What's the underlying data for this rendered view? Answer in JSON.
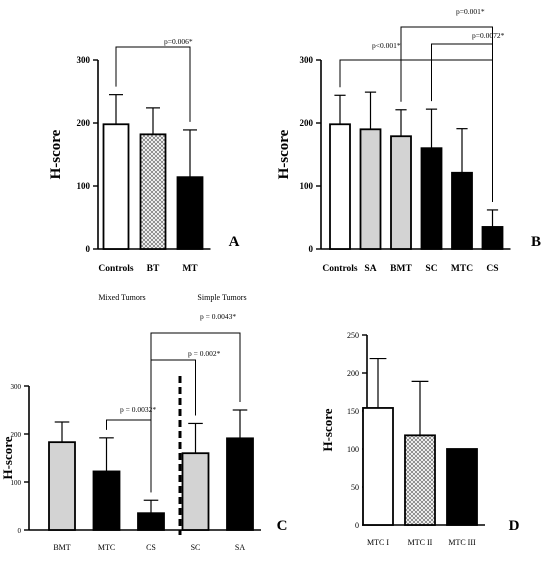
{
  "colors": {
    "white": "#ffffff",
    "gray": "#d3d3d3",
    "black": "#000000",
    "stroke": "#000000"
  },
  "chart_data": [
    {
      "id": "A",
      "panel_label": "A",
      "type": "bar",
      "ylabel": "H-score",
      "ylim": [
        0,
        300
      ],
      "yticks": [
        0,
        100,
        200,
        300
      ],
      "categories": [
        "Controls",
        "BT",
        "MT"
      ],
      "values": [
        198,
        182,
        114
      ],
      "errors": [
        47,
        42,
        75
      ],
      "fills": [
        "white",
        "hatch",
        "black"
      ],
      "annotations": [
        {
          "from": 0,
          "to": 2,
          "text": "p=0.006*"
        }
      ]
    },
    {
      "id": "B",
      "panel_label": "B",
      "type": "bar",
      "ylabel": "H-score",
      "ylim": [
        0,
        300
      ],
      "yticks": [
        0,
        100,
        200,
        300
      ],
      "categories": [
        "Controls",
        "SA",
        "BMT",
        "SC",
        "MTC",
        "CS"
      ],
      "values": [
        198,
        190,
        179,
        160,
        121,
        35
      ],
      "errors": [
        46,
        59,
        42,
        62,
        70,
        27
      ],
      "fills": [
        "white",
        "gray",
        "gray",
        "black",
        "black",
        "black"
      ],
      "annotations": [
        {
          "from": 0,
          "to": 5,
          "text": "p<0.001*"
        },
        {
          "from": 2,
          "to": 5,
          "text": "p=0.001*"
        },
        {
          "from": 3,
          "to": 5,
          "text": "p=0.0072*"
        }
      ]
    },
    {
      "id": "C",
      "panel_label": "C",
      "type": "bar",
      "ylabel": "H-score",
      "ylim": [
        0,
        300
      ],
      "yticks": [
        0,
        100,
        200,
        300
      ],
      "categories": [
        "BMT",
        "MTC",
        "CS",
        "SC",
        "SA"
      ],
      "values": [
        183,
        122,
        35,
        160,
        191
      ],
      "errors": [
        42,
        70,
        27,
        62,
        59
      ],
      "fills": [
        "gray",
        "black",
        "black",
        "gray",
        "black"
      ],
      "group_labels": [
        "Mixed Tumors",
        "Simple  Tumors"
      ],
      "annotations": [
        {
          "from": 1,
          "to": 2,
          "text": "p = 0.0032*"
        },
        {
          "from": 2,
          "to": 3,
          "text": "p = 0.002*"
        },
        {
          "from": 2,
          "to": 4,
          "text": "p = 0.0043*"
        }
      ]
    },
    {
      "id": "D",
      "panel_label": "D",
      "type": "bar",
      "ylabel": "H-score",
      "ylim": [
        0,
        250
      ],
      "yticks": [
        0,
        50,
        100,
        150,
        200,
        250
      ],
      "categories": [
        "MTC I",
        "MTC II",
        "MTC III"
      ],
      "values": [
        154,
        118,
        100
      ],
      "errors": [
        65,
        71,
        0
      ],
      "fills": [
        "white",
        "hatch",
        "black"
      ],
      "annotations": []
    }
  ]
}
